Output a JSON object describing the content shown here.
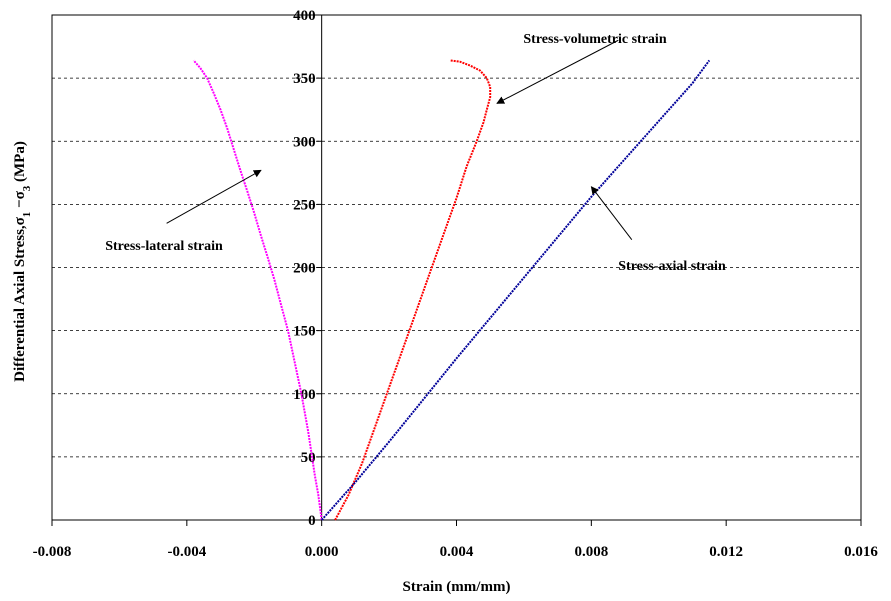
{
  "chart_data": {
    "type": "scatter",
    "title": "",
    "xlabel": "Strain (mm/mm)",
    "ylabel": "Differential Axial Stress,σ1 −σ3 (MPa)",
    "ylabel_parts": {
      "main": "Differential Axial Stress,σ",
      "sub1": "1",
      "mid": " −σ",
      "sub2": "3",
      "unit": " (MPa)"
    },
    "xlim": [
      -0.008,
      0.016
    ],
    "ylim": [
      0,
      400
    ],
    "x_ticks": [
      -0.008,
      -0.004,
      0.0,
      0.004,
      0.008,
      0.012,
      0.016
    ],
    "x_tick_labels": [
      "-0.008",
      "-0.004",
      "0.000",
      "0.004",
      "0.008",
      "0.012",
      "0.016"
    ],
    "y_ticks": [
      0,
      50,
      100,
      150,
      200,
      250,
      300,
      350,
      400
    ],
    "y_tick_labels": [
      "0",
      "50",
      "100",
      "150",
      "200",
      "250",
      "300",
      "350",
      "400"
    ],
    "grid": "horizontal-dashed",
    "legend": "none",
    "series": [
      {
        "color": "#ff00ff",
        "x": [
          0.0,
          -0.0001,
          -0.0002,
          -0.0004,
          -0.0006,
          -0.0008,
          -0.001,
          -0.0012,
          -0.0014,
          -0.0016,
          -0.0018,
          -0.002,
          -0.0022,
          -0.0024,
          -0.0026,
          -0.0028,
          -0.003,
          -0.0032,
          -0.0034,
          -0.0036,
          -0.0038
        ],
        "y": [
          0,
          20,
          35,
          70,
          100,
          125,
          150,
          170,
          190,
          208,
          225,
          243,
          260,
          276,
          293,
          310,
          325,
          338,
          350,
          358,
          364
        ]
      },
      {
        "color": "#ff0000",
        "x": [
          0.0004,
          0.0005,
          0.0008,
          0.0012,
          0.0016,
          0.002,
          0.0024,
          0.0028,
          0.0032,
          0.0036,
          0.004,
          0.0043,
          0.0046,
          0.0048,
          0.0049,
          0.005,
          0.005,
          0.0049,
          0.0047,
          0.0044,
          0.0041,
          0.0038
        ],
        "y": [
          0,
          5,
          20,
          45,
          75,
          105,
          135,
          165,
          195,
          225,
          255,
          280,
          300,
          315,
          325,
          335,
          343,
          350,
          356,
          360,
          363,
          364
        ]
      },
      {
        "color": "#000099",
        "x": [
          0.0,
          0.0005,
          0.001,
          0.002,
          0.003,
          0.004,
          0.005,
          0.006,
          0.007,
          0.008,
          0.009,
          0.01,
          0.011,
          0.0115
        ],
        "y": [
          0,
          15,
          30,
          62,
          95,
          128,
          160,
          192,
          224,
          256,
          286,
          316,
          346,
          364
        ]
      }
    ],
    "annotations": [
      {
        "text": "Stress-volumetric strain",
        "arrow_from": [
          0.0088,
          380
        ],
        "arrow_to": [
          0.0052,
          330
        ]
      },
      {
        "text": "Stress-lateral strain",
        "arrow_from": [
          -0.0046,
          235
        ],
        "arrow_to": [
          -0.0018,
          277
        ]
      },
      {
        "text": "Stress-axial strain",
        "arrow_from": [
          0.0092,
          222
        ],
        "arrow_to": [
          0.008,
          264
        ]
      }
    ]
  }
}
